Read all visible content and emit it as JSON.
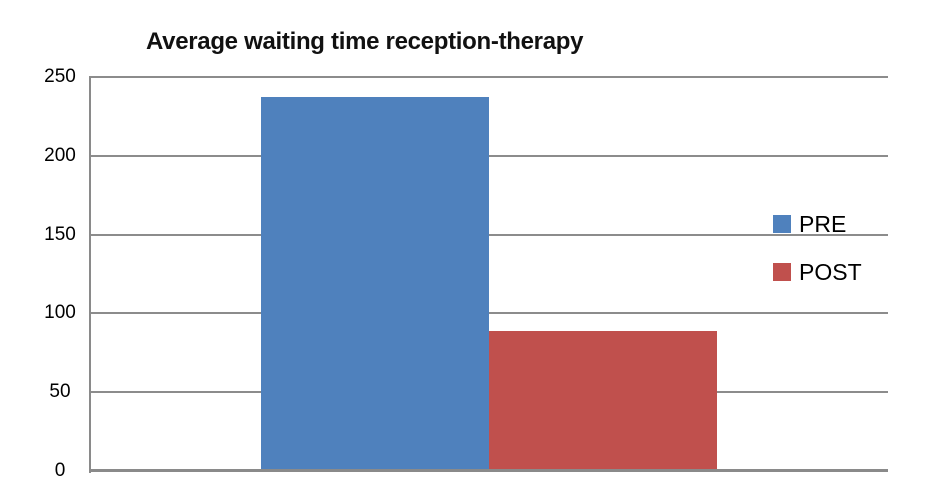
{
  "chart_data": {
    "type": "bar",
    "title": "Average waiting time reception-therapy",
    "categories": [
      ""
    ],
    "series": [
      {
        "name": "PRE",
        "values": [
          237
        ],
        "color": "#4F81BD"
      },
      {
        "name": "POST",
        "values": [
          89
        ],
        "color": "#C0504D"
      }
    ],
    "xlabel": "",
    "ylabel": "",
    "ylim": [
      0,
      250
    ],
    "yticks": [
      0,
      50,
      100,
      150,
      200,
      250
    ],
    "grid": "horizontal",
    "legend_position": "right-inside",
    "colors": {
      "gridline": "#8C8C8C",
      "axis": "#8A8A8A",
      "title_text": "#111111",
      "tick_text": "#000000",
      "background": "#FFFFFF"
    }
  }
}
